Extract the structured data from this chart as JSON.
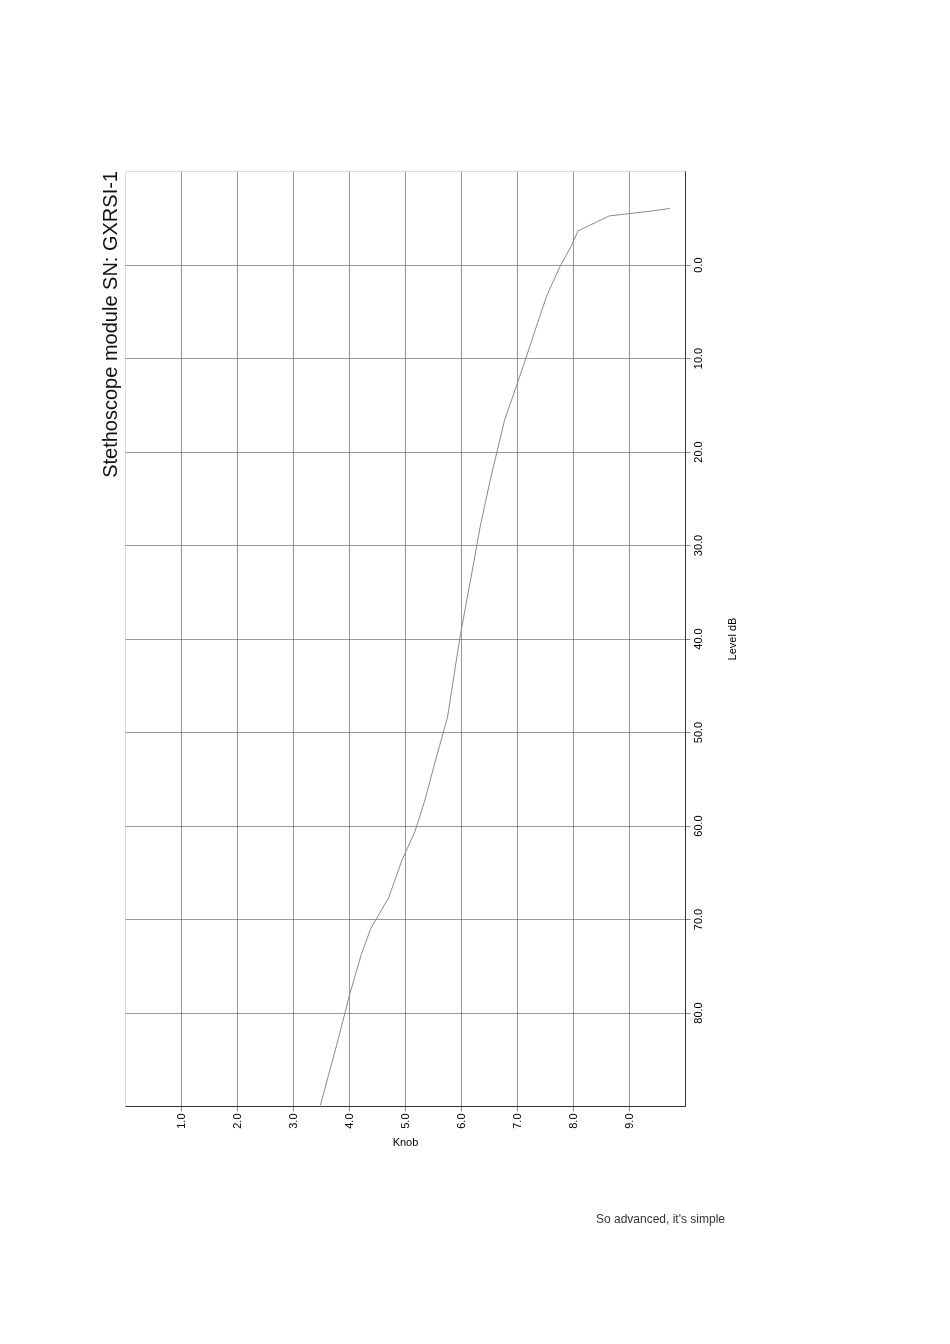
{
  "chart_data": {
    "type": "line",
    "title": "Stethoscope module SN: GXRSI-1",
    "xlabel": "Knob",
    "ylabel": "Level dB",
    "x": [
      3.49,
      3.81,
      4.01,
      4.22,
      4.39,
      4.71,
      4.94,
      5.18,
      5.35,
      5.56,
      5.76,
      5.98,
      6.23,
      6.34,
      6.52,
      6.78,
      6.99,
      7.16,
      7.37,
      7.54,
      7.77,
      7.98,
      8.09,
      8.44,
      8.65,
      9.38,
      9.73
    ],
    "series": [
      {
        "color": "#8a8a8a",
        "values": [
          89.9,
          82.8,
          78.1,
          73.8,
          71.0,
          67.7,
          63.8,
          60.6,
          57.4,
          52.7,
          48.4,
          39.9,
          31.8,
          28.1,
          23.1,
          16.6,
          13.0,
          10.0,
          6.2,
          3.2,
          0.2,
          -2.1,
          -3.6,
          -4.6,
          -5.2,
          -5.7,
          -6.0
        ]
      }
    ],
    "xlim": [
      0,
      10
    ],
    "ylim": [
      90,
      -10
    ],
    "xticks": [
      {
        "value": 1,
        "label": "1.0"
      },
      {
        "value": 2,
        "label": "2.0"
      },
      {
        "value": 3,
        "label": "3.0"
      },
      {
        "value": 4,
        "label": "4.0"
      },
      {
        "value": 5,
        "label": "5.0"
      },
      {
        "value": 6,
        "label": "6.0"
      },
      {
        "value": 7,
        "label": "7.0"
      },
      {
        "value": 8,
        "label": "8.0"
      },
      {
        "value": 9,
        "label": "9.0"
      }
    ],
    "yticks": [
      {
        "value": 0,
        "label": "0.0"
      },
      {
        "value": 10,
        "label": "10.0"
      },
      {
        "value": 20,
        "label": "20.0"
      },
      {
        "value": 30,
        "label": "30.0"
      },
      {
        "value": 40,
        "label": "40.0"
      },
      {
        "value": 50,
        "label": "50.0"
      },
      {
        "value": 60,
        "label": "60.0"
      },
      {
        "value": 70,
        "label": "70.0"
      },
      {
        "value": 80,
        "label": "80.0"
      }
    ],
    "grid": true,
    "marker": "none",
    "line_style": "solid",
    "annotations": [
      "So advanced, it's simple"
    ]
  }
}
